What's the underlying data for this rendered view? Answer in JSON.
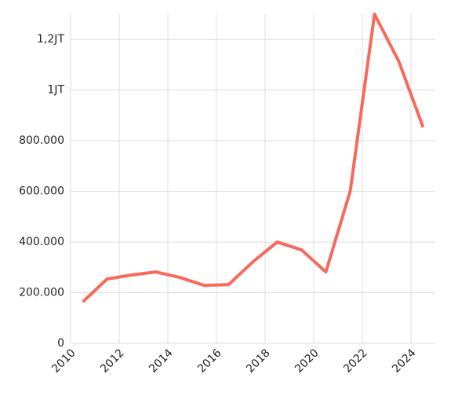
{
  "chart_data": {
    "type": "line",
    "x": [
      2010.5,
      2011.5,
      2012.5,
      2013.5,
      2014.5,
      2015.5,
      2016.5,
      2017.5,
      2018.5,
      2019.5,
      2020.5,
      2021.5,
      2022.5,
      2023.5,
      2024.5
    ],
    "series": [
      {
        "color": "#f8695c",
        "values": [
          164000,
          254000,
          270000,
          282000,
          260000,
          229000,
          232000,
          322000,
          400000,
          369000,
          282000,
          601000,
          1300000,
          1113000,
          853000
        ]
      }
    ],
    "xlim": [
      2010,
      2025
    ],
    "xticks": [
      2010,
      2012,
      2014,
      2016,
      2018,
      2020,
      2022,
      2024
    ],
    "ylim": [
      0,
      1300000
    ],
    "yticks": [
      0,
      {
        "value": 200000,
        "label": "200.000"
      },
      {
        "value": 400000,
        "label": "400.000"
      },
      {
        "value": 600000,
        "label": "600.000"
      },
      {
        "value": 800000,
        "label": "800.000"
      },
      {
        "value": 1000000,
        "label": "1JT"
      },
      {
        "value": 1200000,
        "label": "1,2JT"
      }
    ],
    "grid": true
  }
}
